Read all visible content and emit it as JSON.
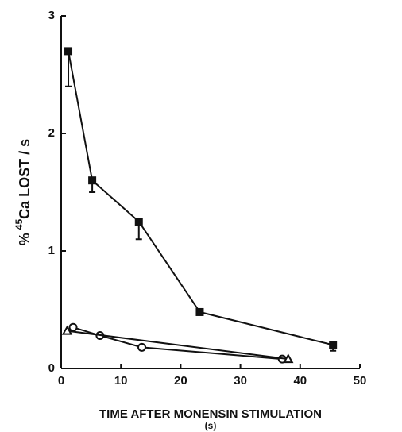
{
  "chart_data": {
    "type": "line",
    "xlabel": "TIME AFTER MONENSIN STIMULATION",
    "xlabel_unit": "(s)",
    "ylabel_parts": [
      "%",
      "45",
      "Ca LOST / s"
    ],
    "xlim": [
      0,
      50
    ],
    "xticks": [
      0,
      10,
      20,
      30,
      40,
      50
    ],
    "ylim": [
      0,
      3
    ],
    "yticks": [
      0,
      1,
      2,
      3
    ],
    "series": [
      {
        "color": "#111111",
        "marker": "square",
        "filled": true,
        "x": [
          1.2,
          5.2,
          13,
          23.2,
          45.5
        ],
        "values": [
          2.7,
          1.6,
          1.25,
          0.48,
          0.2
        ],
        "errors": [
          0.3,
          0.1,
          0.15,
          null,
          0.05
        ]
      },
      {
        "color": "#111111",
        "marker": "circle",
        "filled": false,
        "x": [
          2,
          6.5,
          13.5,
          37
        ],
        "values": [
          0.35,
          0.28,
          0.18,
          0.08
        ]
      },
      {
        "color": "#111111",
        "marker": "triangle",
        "filled": false,
        "x": [
          1,
          38
        ],
        "values": [
          0.32,
          0.08
        ]
      }
    ]
  }
}
